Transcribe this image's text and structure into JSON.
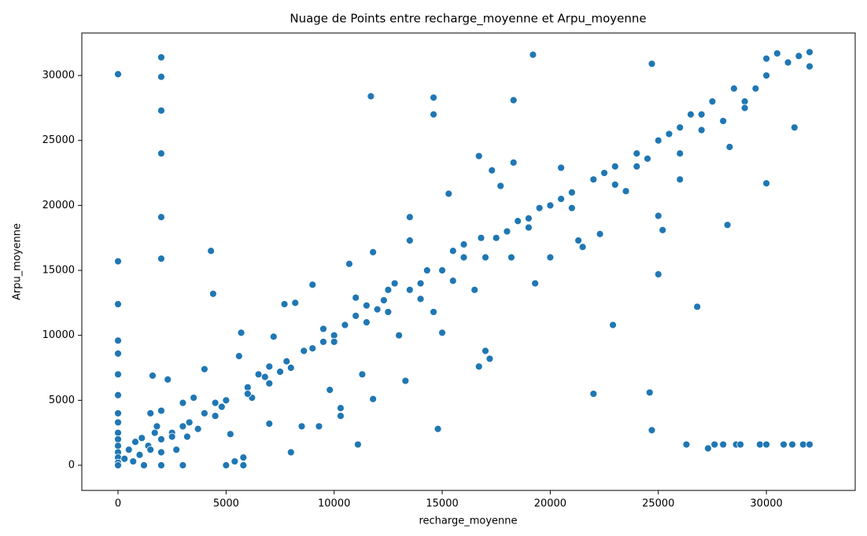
{
  "chart_data": {
    "type": "scatter",
    "title": "Nuage de Points entre recharge_moyenne et Arpu_moyenne",
    "x_label": "recharge_moyenne",
    "y_label": "Arpu_moyenne",
    "color": "#1f77b4",
    "xlim": [
      -1675,
      34110
    ],
    "ylim": [
      -1935,
      33270
    ],
    "xticks": [
      0,
      5000,
      10000,
      15000,
      20000,
      25000,
      30000
    ],
    "yticks": [
      0,
      5000,
      10000,
      15000,
      20000,
      25000,
      30000
    ],
    "grid": false,
    "x": [
      0,
      0,
      0,
      0,
      0,
      0,
      0,
      0,
      0,
      0,
      0,
      0,
      0,
      0,
      0,
      0,
      2000,
      2000,
      2000,
      2000,
      2000,
      2000,
      2000,
      2000,
      2000,
      2000,
      300,
      500,
      700,
      800,
      1000,
      1100,
      1200,
      1400,
      1500,
      1600,
      1700,
      1800,
      2300,
      2500,
      2700,
      3000,
      3000,
      3200,
      3300,
      3500,
      3700,
      4000,
      4000,
      4300,
      4400,
      4500,
      4800,
      5000,
      5000,
      5200,
      5400,
      5600,
      5700,
      5800,
      5800,
      6000,
      6200,
      6500,
      6800,
      7000,
      7000,
      7200,
      7500,
      7800,
      8000,
      7700,
      8200,
      8500,
      8600,
      9000,
      9000,
      9300,
      9500,
      9800,
      10000,
      10300,
      10300,
      10500,
      10700,
      11000,
      11000,
      11100,
      11300,
      11500,
      11700,
      11800,
      11800,
      12000,
      12300,
      12500,
      12800,
      13000,
      13300,
      13500,
      13500,
      13500,
      14000,
      14300,
      14600,
      14600,
      14600,
      14800,
      15000,
      15000,
      15300,
      15500,
      16000,
      16500,
      16700,
      16700,
      16800,
      17000,
      17200,
      17300,
      17500,
      17700,
      18000,
      18200,
      18300,
      18300,
      18500,
      19000,
      19200,
      19300,
      19500,
      20000,
      20000,
      20500,
      21000,
      21300,
      21500,
      22000,
      22000,
      22300,
      22500,
      22900,
      23000,
      23500,
      24000,
      24500,
      24600,
      24700,
      24700,
      25000,
      25000,
      25000,
      25200,
      25500,
      26000,
      26000,
      26300,
      26500,
      26800,
      27000,
      27300,
      27500,
      27600,
      28000,
      28000,
      28200,
      28300,
      28500,
      28600,
      28800,
      29000,
      29500,
      29700,
      30000,
      30000,
      30000,
      30000,
      30500,
      30800,
      31000,
      31200,
      31300,
      31500,
      31700,
      32000,
      32000,
      32000,
      29000,
      27000,
      26000,
      23000,
      21000,
      19000,
      17000,
      15500,
      14000,
      12500,
      10000,
      8000,
      6000,
      3000,
      2500,
      1500,
      24000,
      20500,
      16000,
      11500,
      9500,
      7000,
      4500
    ],
    "values": [
      30100,
      15700,
      12400,
      9600,
      8600,
      7000,
      5400,
      4000,
      3300,
      2500,
      2000,
      1500,
      1000,
      600,
      200,
      0,
      31400,
      29900,
      27300,
      24000,
      19100,
      15900,
      4200,
      2000,
      1000,
      0,
      500,
      1200,
      300,
      1800,
      800,
      2100,
      0,
      1500,
      4000,
      6900,
      2500,
      3000,
      6600,
      2500,
      1200,
      0,
      4800,
      2200,
      3300,
      5200,
      2800,
      4000,
      7400,
      16500,
      13200,
      3800,
      4500,
      5000,
      0,
      2400,
      300,
      8400,
      10200,
      0,
      600,
      6000,
      5200,
      7000,
      6800,
      6300,
      3200,
      9900,
      7200,
      8000,
      1000,
      12400,
      12500,
      3000,
      8800,
      9000,
      13900,
      3000,
      9500,
      5800,
      10000,
      4400,
      3800,
      10800,
      15500,
      11500,
      12900,
      1600,
      7000,
      11000,
      28400,
      5100,
      16400,
      12000,
      12700,
      13500,
      14000,
      10000,
      6500,
      13500,
      19100,
      17300,
      14000,
      15000,
      28300,
      27000,
      11800,
      2800,
      15000,
      10200,
      20900,
      14200,
      16000,
      13500,
      23800,
      7600,
      17500,
      8800,
      8200,
      22700,
      17500,
      21500,
      18000,
      16000,
      28100,
      23300,
      18800,
      19000,
      31600,
      14000,
      19800,
      20000,
      16000,
      22900,
      21000,
      17300,
      16800,
      22000,
      5500,
      17800,
      22500,
      10800,
      23000,
      21100,
      24000,
      23600,
      5600,
      30900,
      2700,
      25000,
      19200,
      14700,
      18100,
      25500,
      26000,
      22000,
      1600,
      27000,
      12200,
      27000,
      1300,
      28000,
      1600,
      26500,
      1600,
      18500,
      24500,
      29000,
      1600,
      1600,
      28000,
      29000,
      1600,
      21700,
      30000,
      1600,
      31300,
      31700,
      1600,
      31000,
      1600,
      26000,
      31500,
      1600,
      31800,
      30700,
      1600,
      27500,
      25800,
      24000,
      21600,
      19800,
      18300,
      16000,
      16500,
      12800,
      11800,
      9500,
      7500,
      5500,
      3000,
      2200,
      1200,
      23000,
      20500,
      17000,
      12300,
      10500,
      7600,
      4800
    ]
  }
}
